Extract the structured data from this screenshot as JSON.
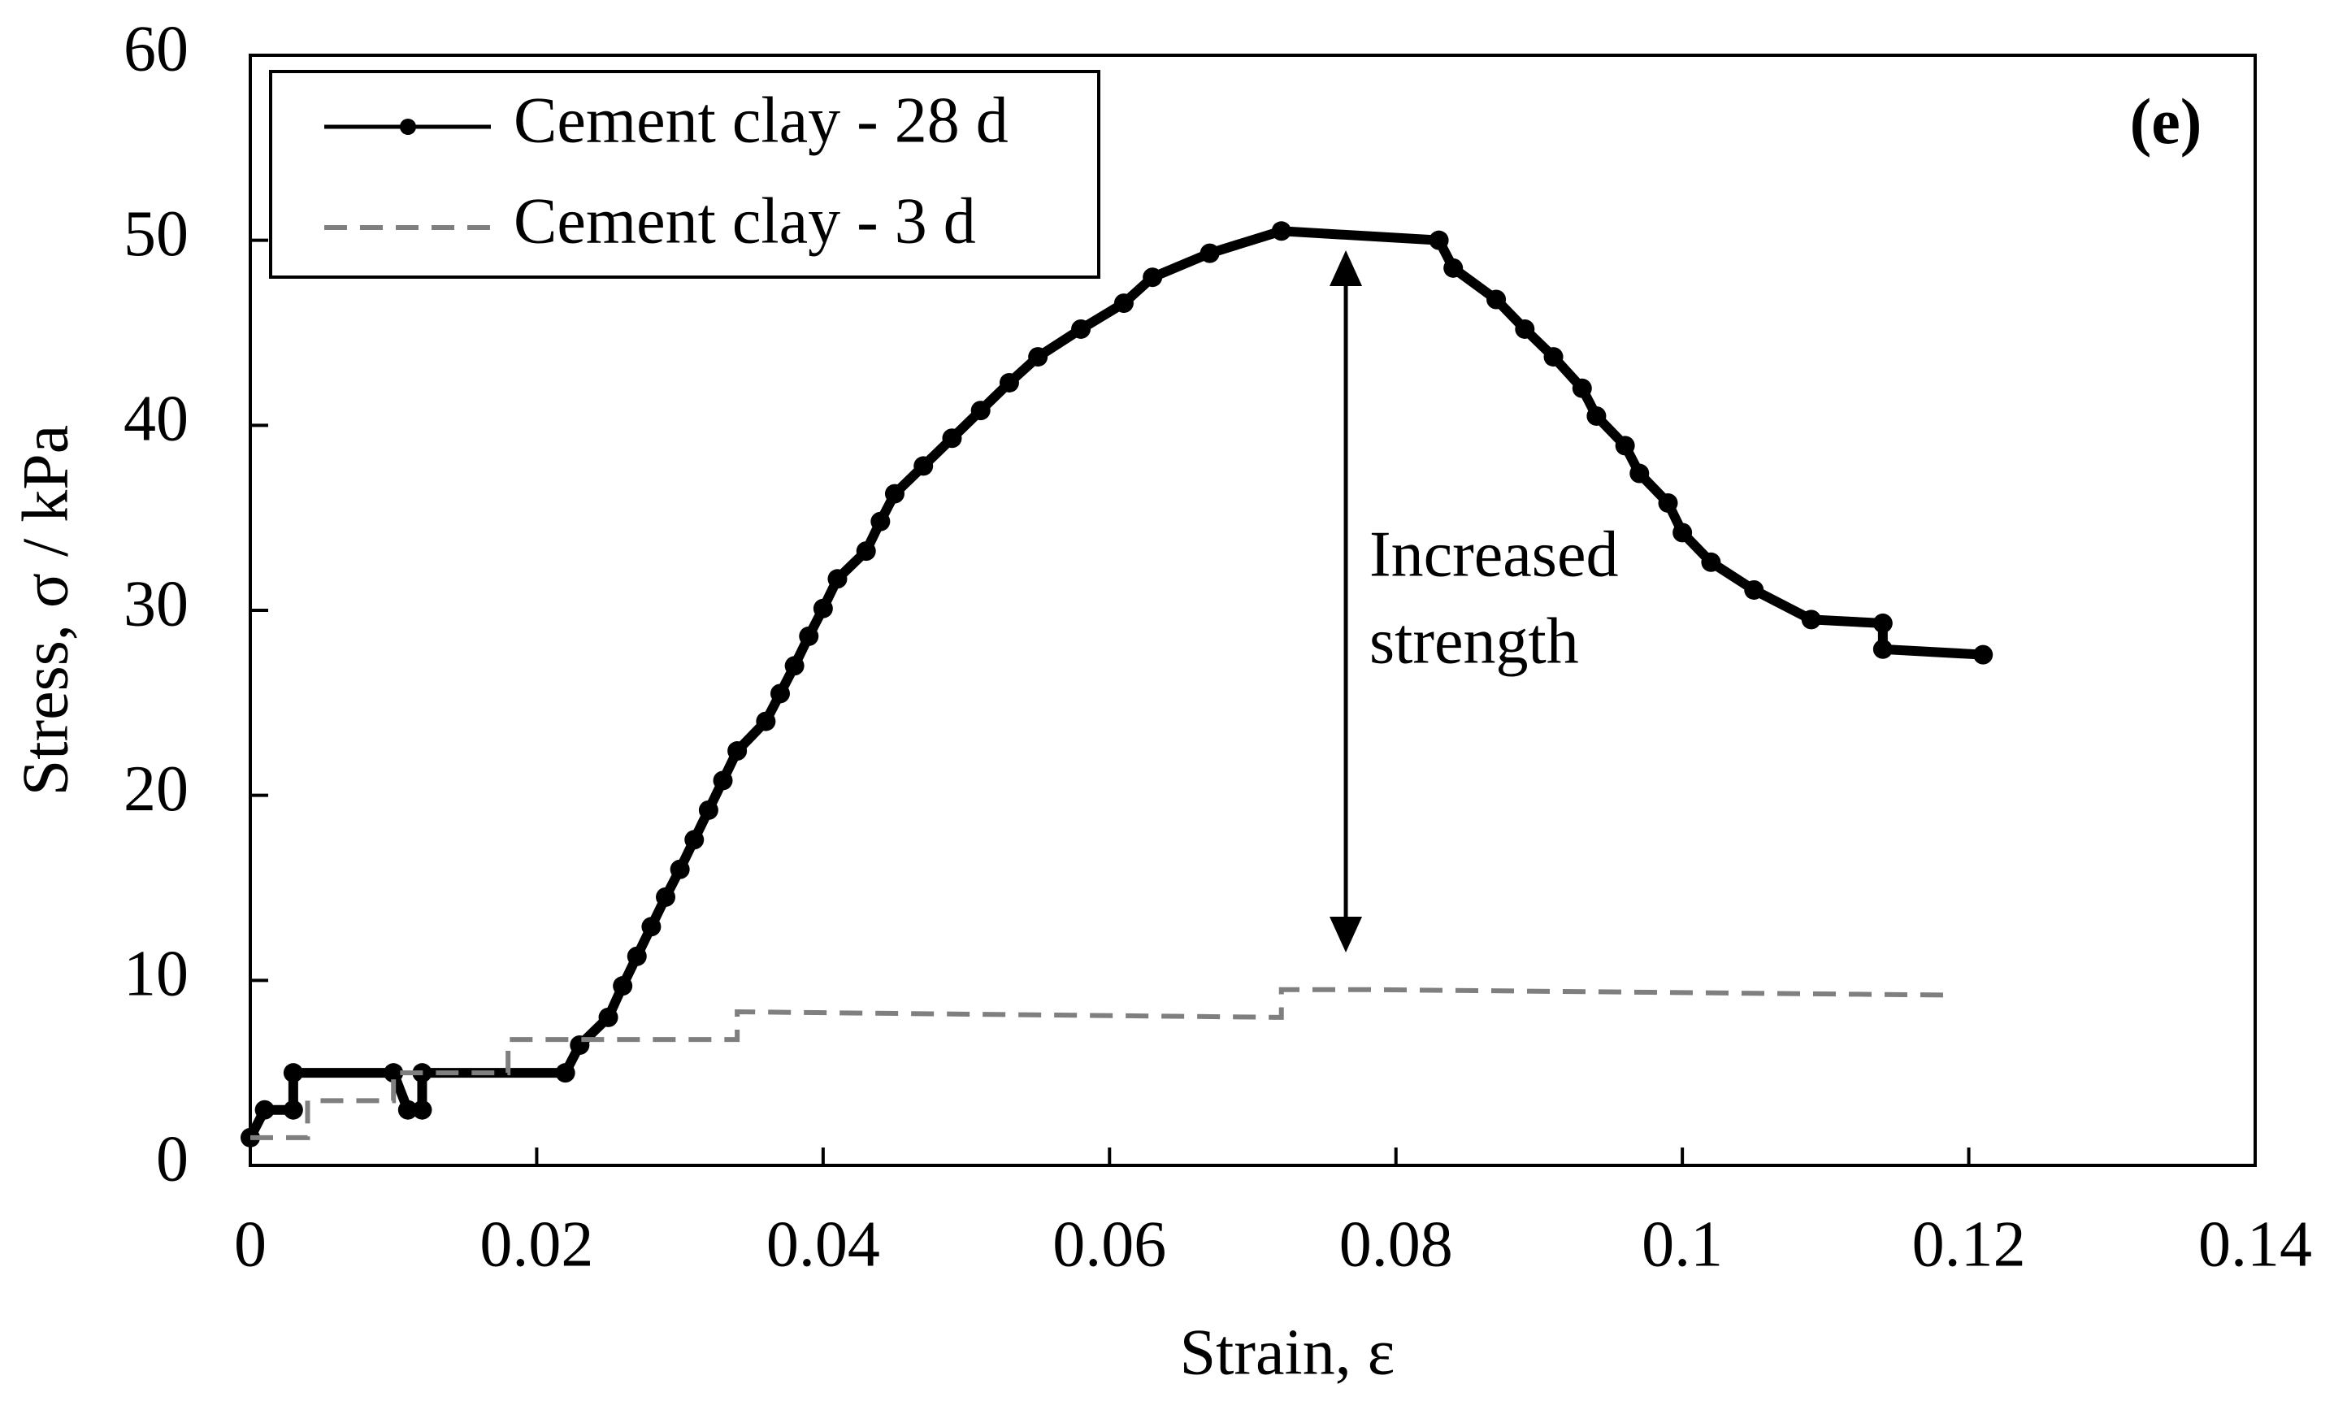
{
  "chart_data": {
    "type": "line",
    "xlabel": "Strain, ε",
    "ylabel": "Stress, σ / kPa",
    "panel_label": "(e)",
    "annotation": [
      "Increased",
      "strength"
    ],
    "xlim": [
      0,
      0.14
    ],
    "ylim": [
      0,
      60
    ],
    "xticks": [
      0,
      0.02,
      0.04,
      0.06,
      0.08,
      0.1,
      0.12,
      0.14
    ],
    "yticks": [
      0,
      10,
      20,
      30,
      40,
      50,
      60
    ],
    "legend": "upper left",
    "series": [
      {
        "name": "Cement clay - 28 d",
        "color": "#000000",
        "style": "solid",
        "markers": true,
        "x": [
          0,
          0.001,
          0.003,
          0.003,
          0.01,
          0.011,
          0.012,
          0.012,
          0.022,
          0.023,
          0.025,
          0.026,
          0.027,
          0.028,
          0.029,
          0.03,
          0.031,
          0.032,
          0.033,
          0.034,
          0.036,
          0.037,
          0.038,
          0.039,
          0.04,
          0.041,
          0.043,
          0.044,
          0.045,
          0.047,
          0.049,
          0.051,
          0.053,
          0.055,
          0.058,
          0.061,
          0.063,
          0.067,
          0.072,
          0.083,
          0.084,
          0.087,
          0.089,
          0.091,
          0.093,
          0.094,
          0.096,
          0.097,
          0.099,
          0.1,
          0.102,
          0.105,
          0.109,
          0.114,
          0.114,
          0.121
        ],
        "values": [
          1.5,
          3,
          3,
          5,
          5,
          3,
          3,
          5,
          5,
          6.5,
          8,
          9.7,
          11.3,
          12.9,
          14.5,
          16,
          17.6,
          19.2,
          20.8,
          22.4,
          24,
          25.5,
          27,
          28.6,
          30.1,
          31.7,
          33.2,
          34.8,
          36.3,
          37.8,
          39.3,
          40.8,
          42.3,
          43.7,
          45.2,
          46.6,
          48,
          49.3,
          50.5,
          50,
          48.5,
          46.8,
          45.2,
          43.7,
          42,
          40.5,
          38.9,
          37.4,
          35.8,
          34.2,
          32.6,
          31.1,
          29.5,
          29.3,
          27.9,
          27.6
        ]
      },
      {
        "name": "Cement clay - 3 d",
        "color": "#7f7f7f",
        "style": "dashed",
        "markers": false,
        "x": [
          0,
          0.004,
          0.004,
          0.01,
          0.01,
          0.018,
          0.018,
          0.034,
          0.034,
          0.072,
          0.072,
          0.078,
          0.119
        ],
        "values": [
          1.5,
          1.5,
          3.5,
          3.5,
          5,
          5,
          6.8,
          6.8,
          8.3,
          8,
          9.5,
          9.5,
          9.2
        ]
      }
    ]
  }
}
